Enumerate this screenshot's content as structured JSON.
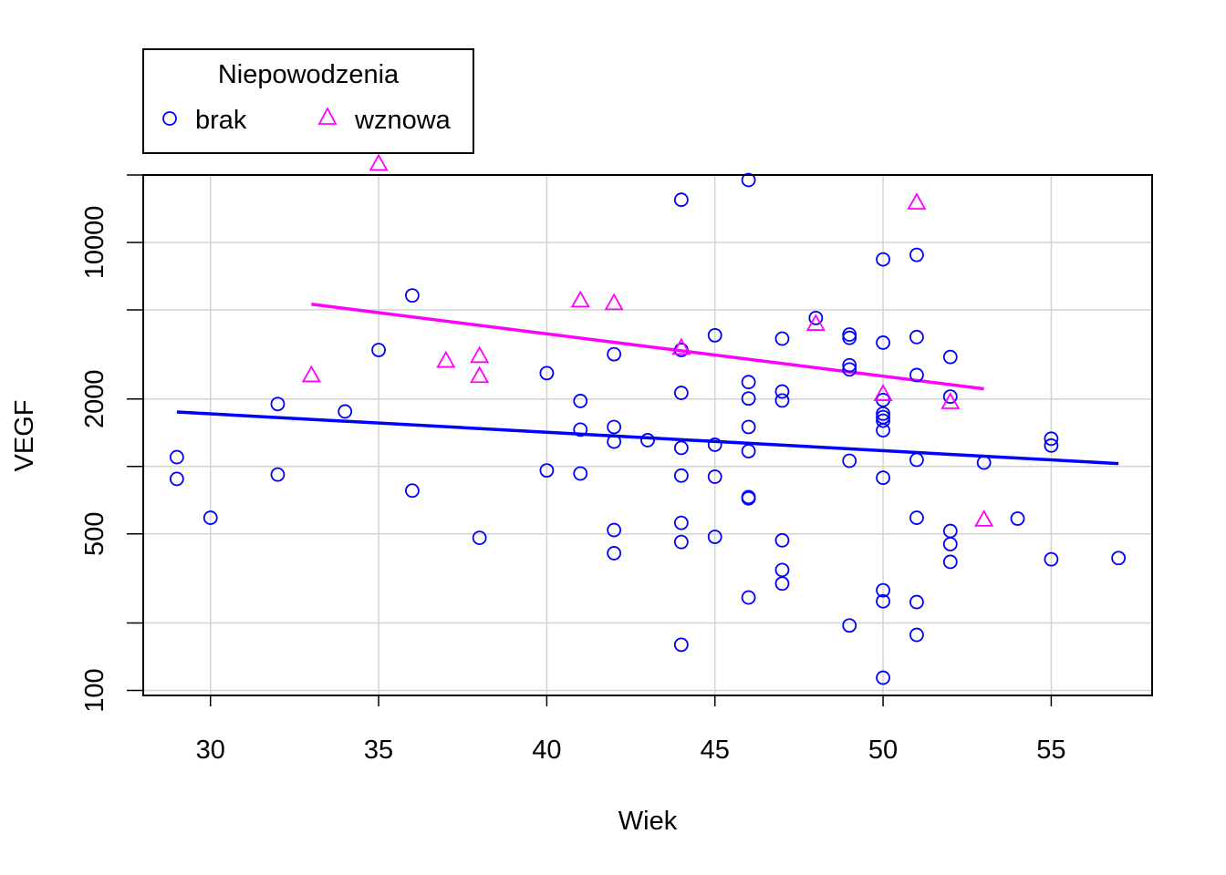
{
  "chart_data": {
    "type": "scatter",
    "xlabel": "Wiek",
    "ylabel": "VEGF",
    "y_scale": "log",
    "xlim": [
      28,
      58
    ],
    "ylim": [
      95,
      20000
    ],
    "x_ticks": [
      30,
      35,
      40,
      45,
      50,
      55
    ],
    "y_ticks": [
      100,
      500,
      2000,
      10000
    ],
    "y_minor_ticks": [
      200,
      1000,
      5000,
      20000
    ],
    "grid": true,
    "legend": {
      "title": "Niepowodzenia",
      "placement": "top-left, above plot",
      "entries": [
        {
          "label": "brak",
          "marker": "circle",
          "color": "#0000ff"
        },
        {
          "label": "wznowa",
          "marker": "triangle",
          "color": "#ff00ff"
        }
      ]
    },
    "series": [
      {
        "name": "brak",
        "marker": "circle",
        "color": "#0000ff",
        "points": [
          [
            29,
            1100
          ],
          [
            29,
            880
          ],
          [
            30,
            590
          ],
          [
            32,
            1900
          ],
          [
            32,
            920
          ],
          [
            34,
            1760
          ],
          [
            35,
            3310
          ],
          [
            36,
            5800
          ],
          [
            36,
            780
          ],
          [
            38,
            480
          ],
          [
            40,
            2610
          ],
          [
            40,
            960
          ],
          [
            41,
            1960
          ],
          [
            41,
            1460
          ],
          [
            41,
            930
          ],
          [
            42,
            3170
          ],
          [
            42,
            1500
          ],
          [
            42,
            1290
          ],
          [
            42,
            520
          ],
          [
            42,
            410
          ],
          [
            43,
            1310
          ],
          [
            44,
            15500
          ],
          [
            44,
            3310
          ],
          [
            44,
            2130
          ],
          [
            44,
            1210
          ],
          [
            44,
            910
          ],
          [
            44,
            560
          ],
          [
            44,
            460
          ],
          [
            44,
            160
          ],
          [
            45,
            3850
          ],
          [
            45,
            1250
          ],
          [
            45,
            900
          ],
          [
            45,
            485
          ],
          [
            46,
            19000
          ],
          [
            46,
            2380
          ],
          [
            46,
            2010
          ],
          [
            46,
            1500
          ],
          [
            46,
            1170
          ],
          [
            46,
            730
          ],
          [
            46,
            720
          ],
          [
            46,
            260
          ],
          [
            47,
            3720
          ],
          [
            47,
            2160
          ],
          [
            47,
            1970
          ],
          [
            47,
            468
          ],
          [
            47,
            345
          ],
          [
            47,
            300
          ],
          [
            48,
            4600
          ],
          [
            49,
            3880
          ],
          [
            49,
            3750
          ],
          [
            49,
            2830
          ],
          [
            49,
            2710
          ],
          [
            49,
            1060
          ],
          [
            49,
            195
          ],
          [
            50,
            8400
          ],
          [
            50,
            3570
          ],
          [
            50,
            1980
          ],
          [
            50,
            1720
          ],
          [
            50,
            1660
          ],
          [
            50,
            1600
          ],
          [
            50,
            1450
          ],
          [
            50,
            890
          ],
          [
            50,
            280
          ],
          [
            50,
            250
          ],
          [
            50,
            114
          ],
          [
            51,
            8800
          ],
          [
            51,
            3780
          ],
          [
            51,
            2560
          ],
          [
            51,
            1070
          ],
          [
            51,
            590
          ],
          [
            51,
            248
          ],
          [
            51,
            177
          ],
          [
            52,
            3080
          ],
          [
            52,
            2050
          ],
          [
            52,
            515
          ],
          [
            52,
            450
          ],
          [
            52,
            375
          ],
          [
            53,
            1040
          ],
          [
            54,
            585
          ],
          [
            55,
            1330
          ],
          [
            55,
            1240
          ],
          [
            55,
            385
          ],
          [
            57,
            390
          ]
        ]
      },
      {
        "name": "wznowa",
        "marker": "triangle",
        "color": "#ff00ff",
        "points": [
          [
            33,
            2560
          ],
          [
            35,
            22500
          ],
          [
            37,
            2970
          ],
          [
            38,
            3120
          ],
          [
            38,
            2540
          ],
          [
            41,
            5520
          ],
          [
            42,
            5370
          ],
          [
            44,
            3390
          ],
          [
            48,
            4340
          ],
          [
            50,
            2110
          ],
          [
            51,
            15100
          ],
          [
            52,
            1940
          ],
          [
            53,
            580
          ]
        ]
      }
    ],
    "fit_lines": [
      {
        "name": "brak",
        "color": "#0000ff",
        "x": [
          29,
          57
        ],
        "y": [
          1750,
          1030
        ]
      },
      {
        "name": "wznowa",
        "color": "#ff00ff",
        "x": [
          33,
          53
        ],
        "y": [
          5300,
          2220
        ]
      }
    ]
  }
}
